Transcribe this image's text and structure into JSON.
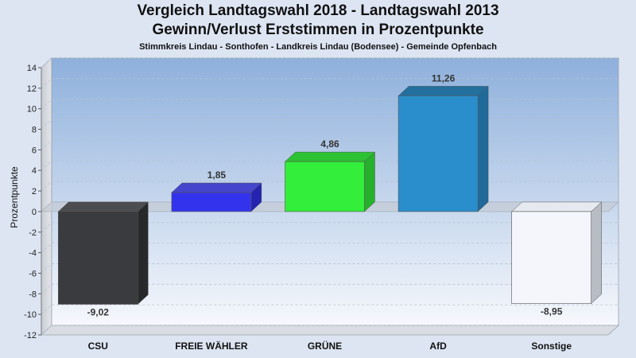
{
  "chart_data": {
    "type": "bar",
    "title": "Vergleich Landtagswahl 2018 - Landtagswahl 2013",
    "subtitle": "Gewinn/Verlust Erststimmen in Prozentpunkte",
    "caption": "Stimmkreis Lindau - Sonthofen - Landkreis Lindau (Bodensee) - Gemeinde Opfenbach",
    "xlabel": "",
    "ylabel": "Prozentpunkte",
    "ylim": [
      -12,
      14
    ],
    "yticks": [
      14,
      12,
      10,
      8,
      6,
      4,
      2,
      0,
      -2,
      -4,
      -6,
      -8,
      -10,
      -12
    ],
    "grid": true,
    "categories": [
      "CSU",
      "FREIE WÄHLER",
      "GRÜNE",
      "AfD",
      "Sonstige"
    ],
    "values": [
      -9.02,
      1.85,
      4.86,
      11.26,
      -8.95
    ],
    "value_labels": [
      "-9,02",
      "1,85",
      "4,86",
      "11,26",
      "-8,95"
    ],
    "colors": [
      "#3a3b3e",
      "#3333ee",
      "#33ee3a",
      "#2a8ecc",
      "#f4f6fb"
    ],
    "side_colors": [
      "#28292b",
      "#2424b0",
      "#26b02b",
      "#1f6a99",
      "#b8bcc4"
    ],
    "top_colors": [
      "#4c4d50",
      "#4444cc",
      "#2cc233",
      "#236f9e",
      "#e6e9f0"
    ]
  }
}
